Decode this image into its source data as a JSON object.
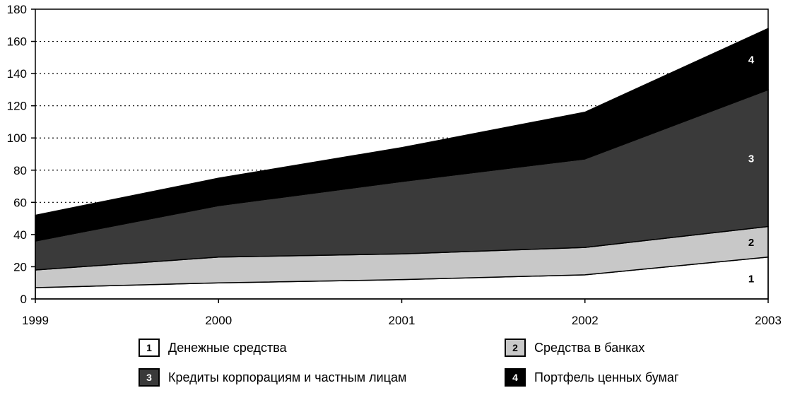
{
  "chart_data": {
    "type": "area",
    "stacked": true,
    "title": "",
    "xlabel": "",
    "ylabel": "",
    "x": [
      1999,
      2000,
      2001,
      2002,
      2003
    ],
    "ylim": [
      0,
      180
    ],
    "yticks": [
      0,
      20,
      40,
      60,
      80,
      100,
      120,
      140,
      160,
      180
    ],
    "grid": "horizontal-dotted",
    "legend_position": "bottom",
    "series": [
      {
        "name": "Денежные средства",
        "label": "1",
        "values": [
          7,
          10,
          12,
          15,
          26
        ],
        "color": "#ffffff",
        "text_color": "#000000"
      },
      {
        "name": "Средства в банках",
        "label": "2",
        "values": [
          11,
          16,
          16,
          17,
          19
        ],
        "color": "#c8c8c8",
        "text_color": "#000000"
      },
      {
        "name": "Кредиты корпорациям и частным лицам",
        "label": "3",
        "values": [
          18,
          32,
          45,
          55,
          85
        ],
        "color": "#3a3a3a",
        "text_color": "#ffffff"
      },
      {
        "name": "Портфель ценных бумаг",
        "label": "4",
        "values": [
          16,
          17,
          21,
          29,
          38
        ],
        "color": "#000000",
        "text_color": "#ffffff"
      }
    ]
  }
}
